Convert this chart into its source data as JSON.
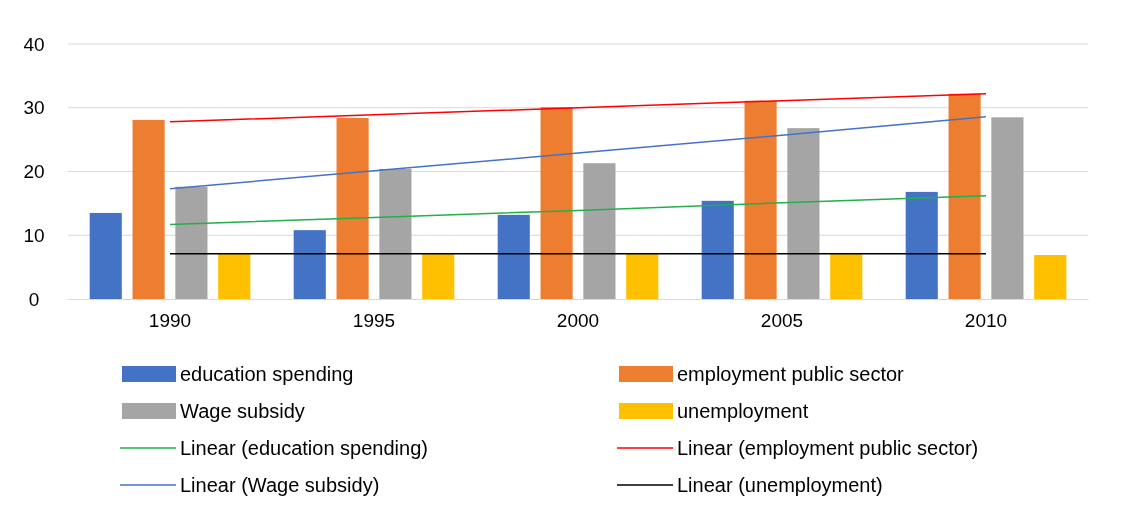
{
  "chart_data": {
    "type": "bar",
    "categories": [
      "1990",
      "1995",
      "2000",
      "2005",
      "2010"
    ],
    "ylim": [
      0,
      40
    ],
    "yticks": [
      0,
      10,
      20,
      30,
      40
    ],
    "grid": "y",
    "legend": "bottom",
    "series": [
      {
        "name": "education spending",
        "color": "#4472c4",
        "values": [
          13.5,
          10.8,
          13.2,
          15.4,
          16.8
        ]
      },
      {
        "name": "employment public sector",
        "color": "#ed7d31",
        "values": [
          28.1,
          28.4,
          30.1,
          31.1,
          32.2
        ]
      },
      {
        "name": "Wage subsidy",
        "color": "#a5a5a5",
        "values": [
          17.6,
          20.4,
          21.3,
          26.8,
          28.5
        ]
      },
      {
        "name": "unemployment",
        "color": "#ffc000",
        "values": [
          7.1,
          7.1,
          7.1,
          7.1,
          6.9
        ]
      },
      {
        "name": "Linear (education spending)",
        "type": "line",
        "color": "#21b04b",
        "values": [
          11.7,
          12.8,
          13.9,
          15.1,
          16.2
        ]
      },
      {
        "name": "Linear (employment public sector)",
        "type": "line",
        "color": "#ff0000",
        "values": [
          27.8,
          28.9,
          30.0,
          31.1,
          32.2
        ]
      },
      {
        "name": "Linear (Wage subsidy)",
        "type": "line",
        "color": "#4472c4",
        "values": [
          17.3,
          20.1,
          22.9,
          25.7,
          28.6
        ]
      },
      {
        "name": "Linear (unemployment)",
        "type": "line",
        "color": "#000000",
        "values": [
          7.1,
          7.1,
          7.1,
          7.1,
          7.1
        ]
      }
    ]
  }
}
